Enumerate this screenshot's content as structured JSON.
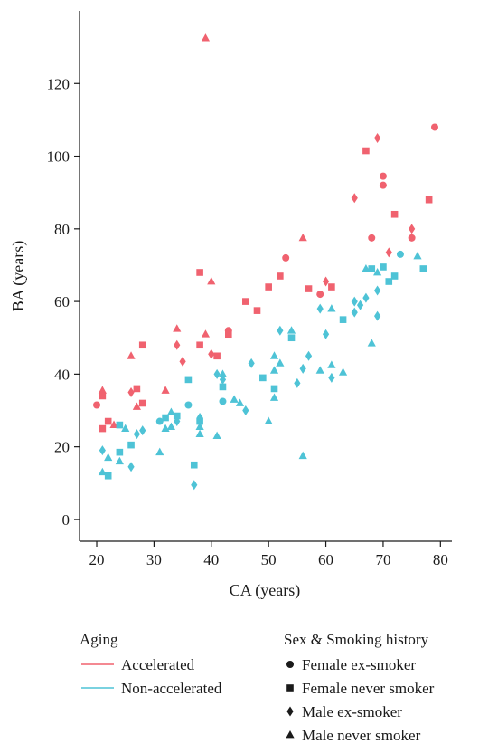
{
  "chart_data": {
    "type": "scatter",
    "xlabel": "CA (years)",
    "ylabel": "BA (years)",
    "xlim": [
      17,
      82
    ],
    "ylim": [
      -6,
      140
    ],
    "xticks": [
      20,
      30,
      40,
      50,
      60,
      70,
      80
    ],
    "yticks": [
      0,
      20,
      40,
      60,
      80,
      100,
      120
    ],
    "grid": false,
    "legends": [
      {
        "title": "Aging",
        "entries": [
          {
            "label": "Accelerated",
            "color": "#f0626f"
          },
          {
            "label": "Non-accelerated",
            "color": "#4ec3d6"
          }
        ]
      },
      {
        "title": "Sex & Smoking history",
        "entries": [
          {
            "label": "Female ex-smoker",
            "shape": "circle"
          },
          {
            "label": "Female never smoker",
            "shape": "square"
          },
          {
            "label": "Male ex-smoker",
            "shape": "diamond"
          },
          {
            "label": "Male never smoker",
            "shape": "triangle"
          }
        ]
      }
    ],
    "series": [
      {
        "name": "Accelerated",
        "color": "#f0626f",
        "points": [
          {
            "x": 20,
            "y": 31.5,
            "shape": "circle"
          },
          {
            "x": 21,
            "y": 35.5,
            "shape": "triangle"
          },
          {
            "x": 21,
            "y": 34,
            "shape": "square"
          },
          {
            "x": 21,
            "y": 25,
            "shape": "square"
          },
          {
            "x": 22,
            "y": 27,
            "shape": "square"
          },
          {
            "x": 23,
            "y": 26,
            "shape": "triangle"
          },
          {
            "x": 26,
            "y": 45,
            "shape": "triangle"
          },
          {
            "x": 26,
            "y": 35,
            "shape": "diamond"
          },
          {
            "x": 27,
            "y": 36,
            "shape": "square"
          },
          {
            "x": 27,
            "y": 31,
            "shape": "triangle"
          },
          {
            "x": 28,
            "y": 48,
            "shape": "square"
          },
          {
            "x": 28,
            "y": 32,
            "shape": "square"
          },
          {
            "x": 32,
            "y": 35.5,
            "shape": "triangle"
          },
          {
            "x": 34,
            "y": 52.5,
            "shape": "triangle"
          },
          {
            "x": 34,
            "y": 48,
            "shape": "diamond"
          },
          {
            "x": 35,
            "y": 43.5,
            "shape": "diamond"
          },
          {
            "x": 38,
            "y": 68,
            "shape": "square"
          },
          {
            "x": 38,
            "y": 48,
            "shape": "square"
          },
          {
            "x": 39,
            "y": 132.5,
            "shape": "triangle"
          },
          {
            "x": 39,
            "y": 51,
            "shape": "triangle"
          },
          {
            "x": 40,
            "y": 65.5,
            "shape": "triangle"
          },
          {
            "x": 40,
            "y": 45.5,
            "shape": "diamond"
          },
          {
            "x": 41,
            "y": 45,
            "shape": "square"
          },
          {
            "x": 43,
            "y": 52,
            "shape": "circle"
          },
          {
            "x": 43,
            "y": 51,
            "shape": "square"
          },
          {
            "x": 46,
            "y": 60,
            "shape": "square"
          },
          {
            "x": 48,
            "y": 57.5,
            "shape": "square"
          },
          {
            "x": 50,
            "y": 64,
            "shape": "square"
          },
          {
            "x": 52,
            "y": 67,
            "shape": "square"
          },
          {
            "x": 53,
            "y": 72,
            "shape": "circle"
          },
          {
            "x": 56,
            "y": 77.5,
            "shape": "triangle"
          },
          {
            "x": 57,
            "y": 63.5,
            "shape": "square"
          },
          {
            "x": 59,
            "y": 62,
            "shape": "circle"
          },
          {
            "x": 60,
            "y": 65.5,
            "shape": "diamond"
          },
          {
            "x": 61,
            "y": 64,
            "shape": "square"
          },
          {
            "x": 65,
            "y": 88.5,
            "shape": "diamond"
          },
          {
            "x": 67,
            "y": 101.5,
            "shape": "square"
          },
          {
            "x": 68,
            "y": 77.5,
            "shape": "circle"
          },
          {
            "x": 69,
            "y": 105,
            "shape": "diamond"
          },
          {
            "x": 70,
            "y": 94.5,
            "shape": "circle"
          },
          {
            "x": 70,
            "y": 92,
            "shape": "circle"
          },
          {
            "x": 71,
            "y": 73.5,
            "shape": "diamond"
          },
          {
            "x": 72,
            "y": 84,
            "shape": "square"
          },
          {
            "x": 75,
            "y": 80,
            "shape": "diamond"
          },
          {
            "x": 75,
            "y": 77.5,
            "shape": "circle"
          },
          {
            "x": 78,
            "y": 88,
            "shape": "square"
          },
          {
            "x": 79,
            "y": 108,
            "shape": "circle"
          }
        ]
      },
      {
        "name": "Non-accelerated",
        "color": "#4ec3d6",
        "points": [
          {
            "x": 21,
            "y": 19,
            "shape": "diamond"
          },
          {
            "x": 21,
            "y": 13,
            "shape": "triangle"
          },
          {
            "x": 22,
            "y": 17,
            "shape": "triangle"
          },
          {
            "x": 22,
            "y": 12,
            "shape": "square"
          },
          {
            "x": 24,
            "y": 26,
            "shape": "square"
          },
          {
            "x": 24,
            "y": 18.5,
            "shape": "square"
          },
          {
            "x": 24,
            "y": 16,
            "shape": "triangle"
          },
          {
            "x": 25,
            "y": 25,
            "shape": "triangle"
          },
          {
            "x": 26,
            "y": 20.5,
            "shape": "square"
          },
          {
            "x": 26,
            "y": 14.5,
            "shape": "diamond"
          },
          {
            "x": 27,
            "y": 23.5,
            "shape": "diamond"
          },
          {
            "x": 28,
            "y": 24.5,
            "shape": "diamond"
          },
          {
            "x": 31,
            "y": 27,
            "shape": "circle"
          },
          {
            "x": 31,
            "y": 18.5,
            "shape": "triangle"
          },
          {
            "x": 32,
            "y": 28,
            "shape": "square"
          },
          {
            "x": 32,
            "y": 25,
            "shape": "triangle"
          },
          {
            "x": 33,
            "y": 29.5,
            "shape": "triangle"
          },
          {
            "x": 33,
            "y": 25.5,
            "shape": "triangle"
          },
          {
            "x": 34,
            "y": 28.5,
            "shape": "square"
          },
          {
            "x": 34,
            "y": 27,
            "shape": "diamond"
          },
          {
            "x": 36,
            "y": 38.5,
            "shape": "square"
          },
          {
            "x": 36,
            "y": 31.5,
            "shape": "circle"
          },
          {
            "x": 37,
            "y": 15,
            "shape": "square"
          },
          {
            "x": 37,
            "y": 9.5,
            "shape": "diamond"
          },
          {
            "x": 38,
            "y": 28,
            "shape": "diamond"
          },
          {
            "x": 38,
            "y": 27,
            "shape": "square"
          },
          {
            "x": 38,
            "y": 25.5,
            "shape": "triangle"
          },
          {
            "x": 38,
            "y": 23.5,
            "shape": "triangle"
          },
          {
            "x": 41,
            "y": 40,
            "shape": "diamond"
          },
          {
            "x": 41,
            "y": 23,
            "shape": "triangle"
          },
          {
            "x": 42,
            "y": 40,
            "shape": "triangle"
          },
          {
            "x": 42,
            "y": 38.5,
            "shape": "diamond"
          },
          {
            "x": 42,
            "y": 36.5,
            "shape": "square"
          },
          {
            "x": 42,
            "y": 32.5,
            "shape": "circle"
          },
          {
            "x": 44,
            "y": 33,
            "shape": "triangle"
          },
          {
            "x": 45,
            "y": 32,
            "shape": "triangle"
          },
          {
            "x": 46,
            "y": 30,
            "shape": "diamond"
          },
          {
            "x": 47,
            "y": 43,
            "shape": "diamond"
          },
          {
            "x": 49,
            "y": 39,
            "shape": "square"
          },
          {
            "x": 50,
            "y": 27,
            "shape": "triangle"
          },
          {
            "x": 51,
            "y": 45,
            "shape": "triangle"
          },
          {
            "x": 51,
            "y": 41,
            "shape": "triangle"
          },
          {
            "x": 51,
            "y": 36,
            "shape": "square"
          },
          {
            "x": 51,
            "y": 33.5,
            "shape": "triangle"
          },
          {
            "x": 52,
            "y": 52,
            "shape": "diamond"
          },
          {
            "x": 52,
            "y": 43,
            "shape": "triangle"
          },
          {
            "x": 54,
            "y": 52,
            "shape": "triangle"
          },
          {
            "x": 54,
            "y": 50,
            "shape": "square"
          },
          {
            "x": 55,
            "y": 37.5,
            "shape": "diamond"
          },
          {
            "x": 56,
            "y": 41.5,
            "shape": "diamond"
          },
          {
            "x": 56,
            "y": 17.5,
            "shape": "triangle"
          },
          {
            "x": 57,
            "y": 45,
            "shape": "diamond"
          },
          {
            "x": 59,
            "y": 58,
            "shape": "diamond"
          },
          {
            "x": 59,
            "y": 41,
            "shape": "triangle"
          },
          {
            "x": 60,
            "y": 51,
            "shape": "diamond"
          },
          {
            "x": 61,
            "y": 58,
            "shape": "triangle"
          },
          {
            "x": 61,
            "y": 42.5,
            "shape": "triangle"
          },
          {
            "x": 61,
            "y": 39,
            "shape": "diamond"
          },
          {
            "x": 63,
            "y": 55,
            "shape": "square"
          },
          {
            "x": 63,
            "y": 40.5,
            "shape": "triangle"
          },
          {
            "x": 65,
            "y": 60,
            "shape": "diamond"
          },
          {
            "x": 65,
            "y": 57,
            "shape": "diamond"
          },
          {
            "x": 66,
            "y": 59,
            "shape": "diamond"
          },
          {
            "x": 67,
            "y": 69,
            "shape": "triangle"
          },
          {
            "x": 67,
            "y": 61,
            "shape": "diamond"
          },
          {
            "x": 68,
            "y": 69,
            "shape": "square"
          },
          {
            "x": 68,
            "y": 48.5,
            "shape": "triangle"
          },
          {
            "x": 69,
            "y": 68,
            "shape": "triangle"
          },
          {
            "x": 69,
            "y": 63,
            "shape": "diamond"
          },
          {
            "x": 69,
            "y": 56,
            "shape": "diamond"
          },
          {
            "x": 70,
            "y": 69.5,
            "shape": "square"
          },
          {
            "x": 71,
            "y": 65.5,
            "shape": "square"
          },
          {
            "x": 72,
            "y": 67,
            "shape": "square"
          },
          {
            "x": 73,
            "y": 73,
            "shape": "circle"
          },
          {
            "x": 76,
            "y": 72.5,
            "shape": "triangle"
          },
          {
            "x": 77,
            "y": 69,
            "shape": "square"
          }
        ]
      }
    ]
  }
}
